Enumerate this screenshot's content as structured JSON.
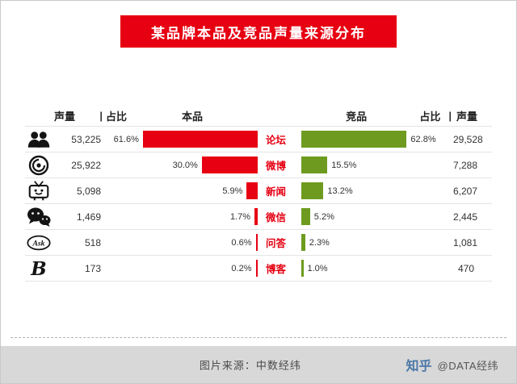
{
  "title": "某品牌本品及竞品声量来源分布",
  "header": {
    "volume_label_left": "声量",
    "share_label_left": "占比",
    "own_series_label": "本品",
    "competitor_series_label": "竞品",
    "share_label_right": "占比",
    "volume_label_right": "声量",
    "divider": "|"
  },
  "colors": {
    "own": "#e60012",
    "competitor": "#6e9b1f",
    "banner_bg": "#e60012",
    "footer_bg": "#d8d8d8"
  },
  "chart_data": {
    "type": "bar",
    "variant": "tornado",
    "title": "某品牌本品及竞品声量来源分布",
    "categories": [
      "论坛",
      "微博",
      "新闻",
      "微信",
      "问答",
      "博客"
    ],
    "icons": [
      "forum-icon",
      "weibo-icon",
      "news-icon",
      "wechat-icon",
      "ask-icon",
      "blog-icon"
    ],
    "share_axis_max": 65,
    "legend_position": "top",
    "grid": false,
    "series": [
      {
        "name": "本品",
        "color": "#e60012",
        "volumes": [
          "53,225",
          "25,922",
          "5,098",
          "1,469",
          "518",
          "173"
        ],
        "shares": [
          61.6,
          30.0,
          5.9,
          1.7,
          0.6,
          0.2
        ],
        "share_labels": [
          "61.6%",
          "30.0%",
          "5.9%",
          "1.7%",
          "0.6%",
          "0.2%"
        ]
      },
      {
        "name": "竞品",
        "color": "#6e9b1f",
        "volumes": [
          "29,528",
          "7,288",
          "6,207",
          "2,445",
          "1,081",
          "470"
        ],
        "shares": [
          62.8,
          15.5,
          13.2,
          5.2,
          2.3,
          1.0
        ],
        "share_labels": [
          "62.8%",
          "15.5%",
          "13.2%",
          "5.2%",
          "2.3%",
          "1.0%"
        ]
      }
    ]
  },
  "footer": {
    "source": "图片来源：中数经纬",
    "brand_logo": "知乎",
    "brand_handle": "@DATA经纬"
  }
}
